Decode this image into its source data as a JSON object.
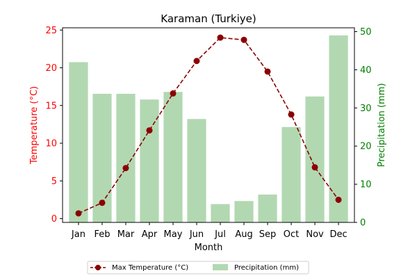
{
  "chart_data": {
    "type": "bar+line",
    "title": "Karaman (Turkiye)",
    "xlabel": "Month",
    "categories": [
      "Jan",
      "Feb",
      "Mar",
      "Apr",
      "May",
      "Jun",
      "Jul",
      "Aug",
      "Sep",
      "Oct",
      "Nov",
      "Dec"
    ],
    "y_left": {
      "label": "Temperature (°C)",
      "lim": [
        -0.5,
        25.3
      ],
      "ticks": [
        0,
        5,
        10,
        15,
        20,
        25
      ],
      "color": "#ff0000"
    },
    "y_right": {
      "label": "Precipitation (mm)",
      "lim": [
        0,
        51
      ],
      "ticks": [
        0,
        10,
        20,
        30,
        40,
        50
      ],
      "color": "#008000"
    },
    "series": [
      {
        "name": "Max Temperature (°C)",
        "type": "line",
        "axis": "left",
        "color": "#8b0000",
        "style": "dashed",
        "marker": "circle",
        "values": [
          0.7,
          2.1,
          6.7,
          11.7,
          16.6,
          20.9,
          24.0,
          23.7,
          19.5,
          13.8,
          6.8,
          2.5
        ]
      },
      {
        "name": "Precipitation (mm)",
        "type": "bar",
        "axis": "right",
        "color": "#b2d8b2",
        "values": [
          42,
          33.7,
          33.7,
          32.2,
          34.2,
          27.1,
          4.8,
          5.6,
          7.3,
          25,
          33,
          49
        ]
      }
    ],
    "legend_position": "bottom-center"
  }
}
